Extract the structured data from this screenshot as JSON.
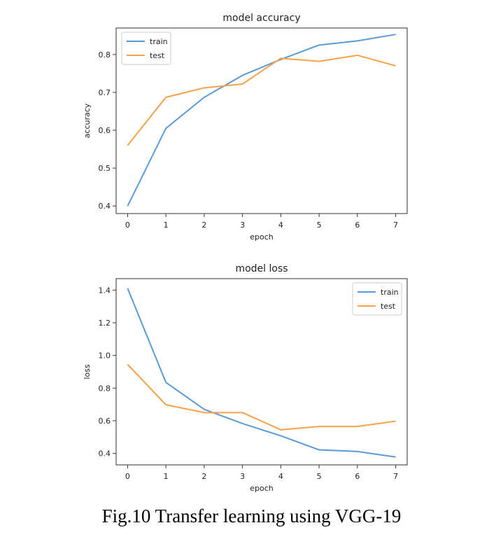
{
  "caption": "Fig.10 Transfer learning using VGG-19",
  "colors": {
    "train": "#5a9bd5",
    "test": "#f8a04a"
  },
  "chart_data": [
    {
      "type": "line",
      "title": "model accuracy",
      "xlabel": "epoch",
      "ylabel": "accuracy",
      "x": [
        0,
        1,
        2,
        3,
        4,
        5,
        6,
        7
      ],
      "xlim": [
        -0.3,
        7.3
      ],
      "ylim": [
        0.38,
        0.87
      ],
      "yticks": [
        0.4,
        0.5,
        0.6,
        0.7,
        0.8
      ],
      "legend": "top-left",
      "series": [
        {
          "name": "train",
          "values": [
            0.4,
            0.605,
            0.687,
            0.745,
            0.787,
            0.825,
            0.836,
            0.853
          ]
        },
        {
          "name": "test",
          "values": [
            0.56,
            0.687,
            0.712,
            0.722,
            0.79,
            0.782,
            0.798,
            0.77
          ]
        }
      ]
    },
    {
      "type": "line",
      "title": "model loss",
      "xlabel": "epoch",
      "ylabel": "loss",
      "x": [
        0,
        1,
        2,
        3,
        4,
        5,
        6,
        7
      ],
      "xlim": [
        -0.3,
        7.3
      ],
      "ylim": [
        0.33,
        1.47
      ],
      "yticks": [
        0.4,
        0.6,
        0.8,
        1.0,
        1.2,
        1.4
      ],
      "legend": "top-right",
      "series": [
        {
          "name": "train",
          "values": [
            1.41,
            0.835,
            0.67,
            0.583,
            0.508,
            0.422,
            0.412,
            0.378
          ]
        },
        {
          "name": "test",
          "values": [
            0.945,
            0.698,
            0.65,
            0.65,
            0.545,
            0.565,
            0.565,
            0.598
          ]
        }
      ]
    }
  ]
}
